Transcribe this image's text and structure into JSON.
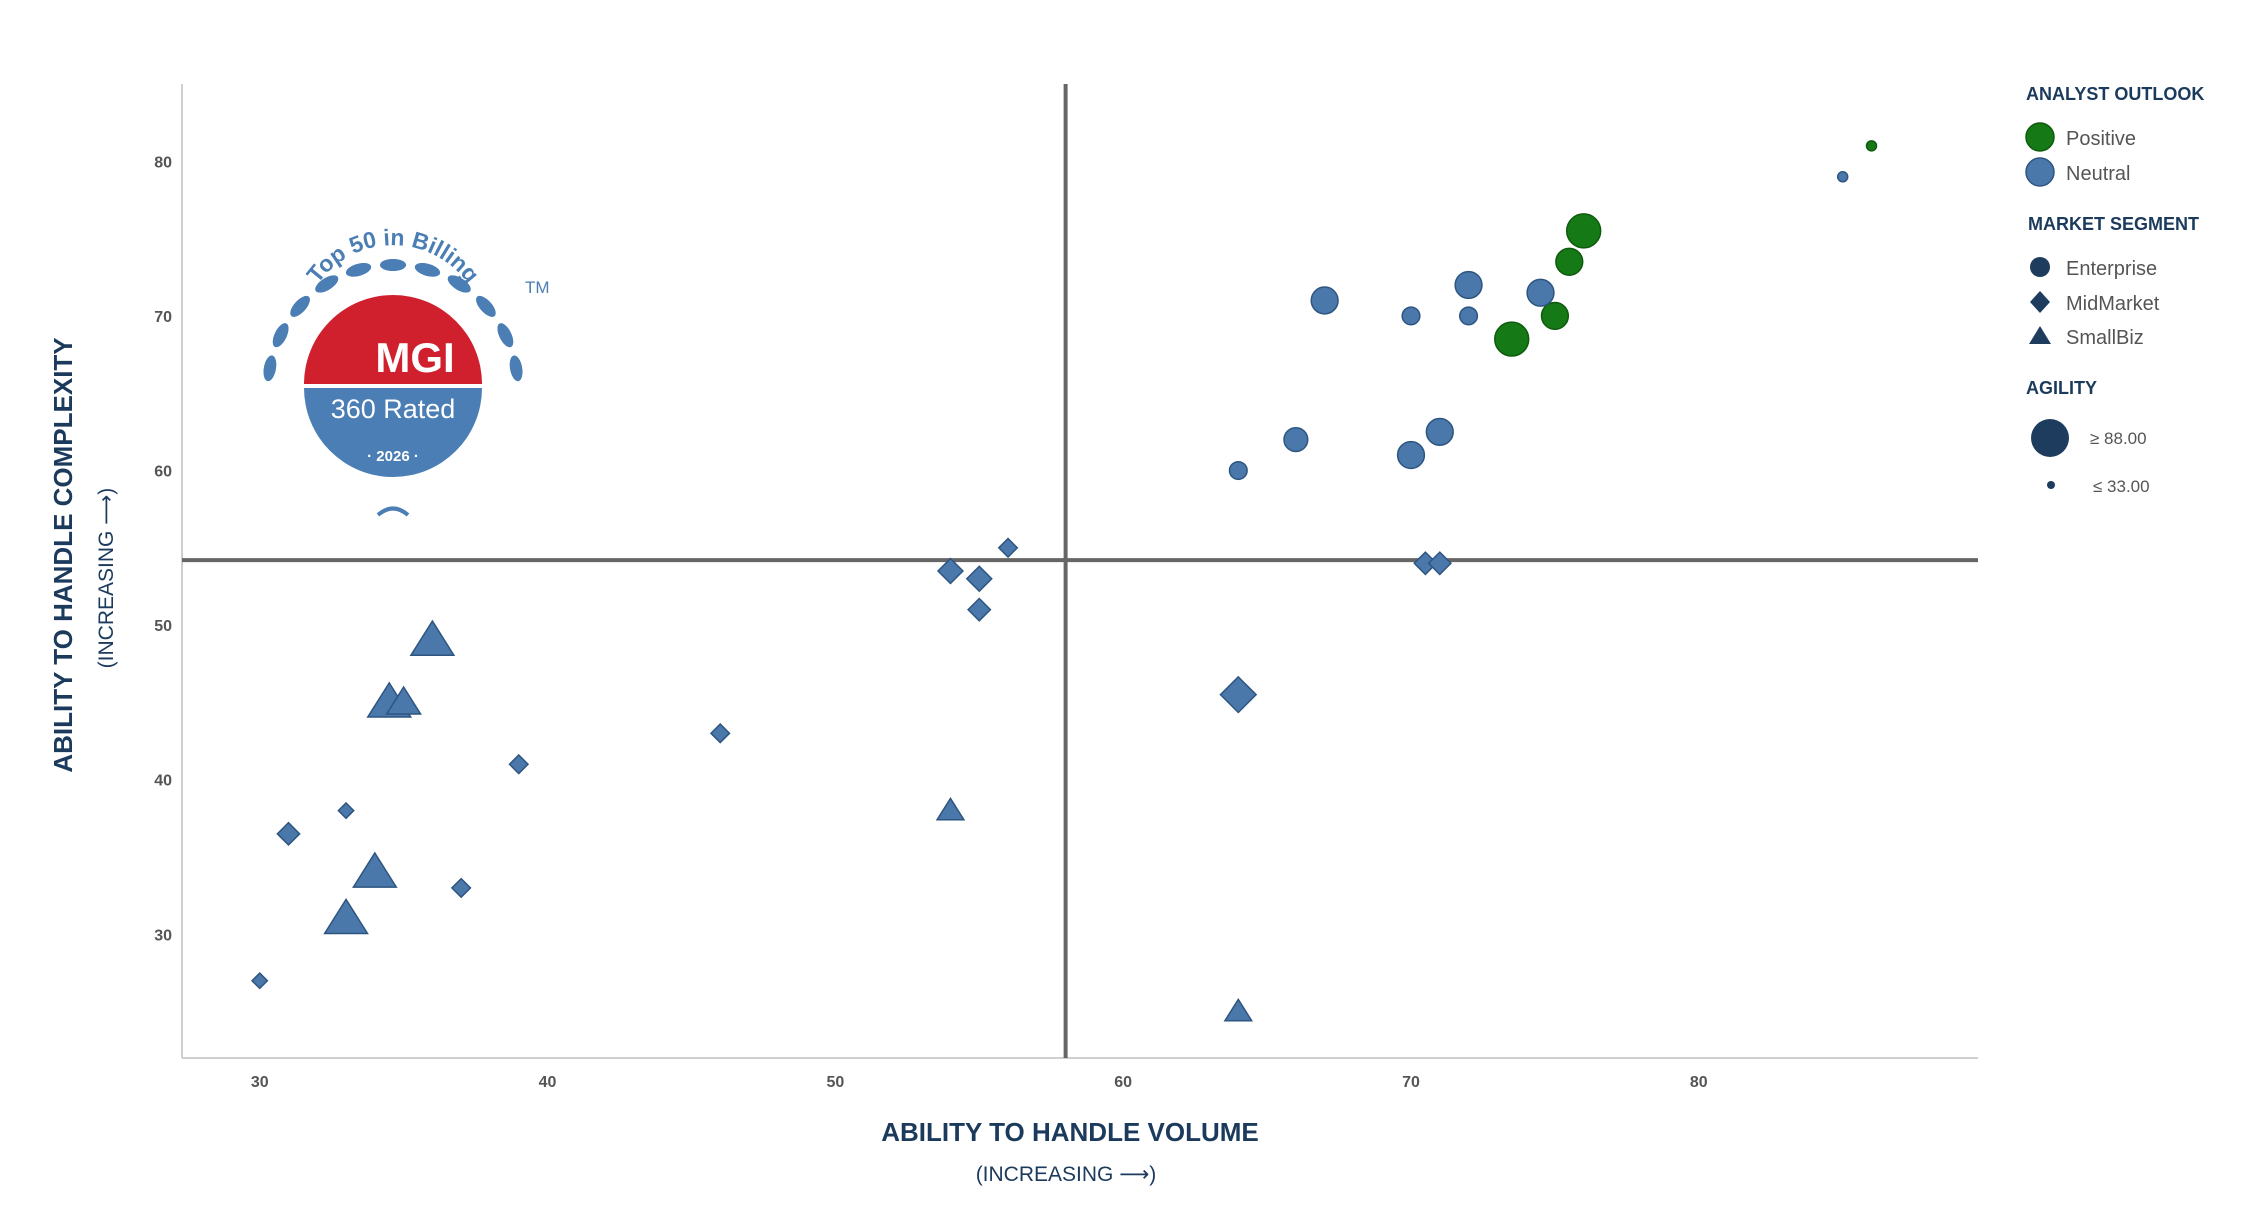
{
  "chart_data": {
    "type": "scatter",
    "xlabel": "ABILITY TO HANDLE VOLUME",
    "xlabel_sub": "(INCREASING ⟶)",
    "ylabel": "ABILITY TO HANDLE COMPLEXITY",
    "ylabel_sub": "(INCREASING ⟶)",
    "xlim": [
      27.3,
      89.7
    ],
    "ylim": [
      22,
      85
    ],
    "xticks": [
      30,
      40,
      50,
      60,
      70,
      80
    ],
    "yticks": [
      30,
      40,
      50,
      60,
      70,
      80
    ],
    "quadrant_lines": {
      "x": 58,
      "y": 54.2
    },
    "grid": false,
    "colors": {
      "Positive": "#157a15",
      "Neutral": "#4a78aa",
      "stroke": "#2e5580",
      "axis": "#666666",
      "title": "#1b3a5c"
    },
    "legend_position": "right",
    "legend": {
      "outlook_title": "ANALYST OUTLOOK",
      "outlook_items": [
        "Positive",
        "Neutral"
      ],
      "segment_title": "MARKET SEGMENT",
      "segment_items": [
        "Enterprise",
        "MidMarket",
        "SmallBiz"
      ],
      "agility_title": "AGILITY",
      "agility_max": "≥ 88.00",
      "agility_min": "≤ 33.00"
    },
    "points": [
      {
        "x": 86,
        "y": 81,
        "segment": "Enterprise",
        "outlook": "Positive",
        "agility": 33
      },
      {
        "x": 85,
        "y": 79,
        "segment": "Enterprise",
        "outlook": "Neutral",
        "agility": 33
      },
      {
        "x": 76,
        "y": 75.5,
        "segment": "Enterprise",
        "outlook": "Positive",
        "agility": 80
      },
      {
        "x": 75.5,
        "y": 73.5,
        "segment": "Enterprise",
        "outlook": "Positive",
        "agility": 66
      },
      {
        "x": 75,
        "y": 70,
        "segment": "Enterprise",
        "outlook": "Positive",
        "agility": 66
      },
      {
        "x": 73.5,
        "y": 68.5,
        "segment": "Enterprise",
        "outlook": "Positive",
        "agility": 80
      },
      {
        "x": 74.5,
        "y": 71.5,
        "segment": "Enterprise",
        "outlook": "Neutral",
        "agility": 66
      },
      {
        "x": 72,
        "y": 72,
        "segment": "Enterprise",
        "outlook": "Neutral",
        "agility": 66
      },
      {
        "x": 72,
        "y": 70,
        "segment": "Enterprise",
        "outlook": "Neutral",
        "agility": 48
      },
      {
        "x": 70,
        "y": 70,
        "segment": "Enterprise",
        "outlook": "Neutral",
        "agility": 48
      },
      {
        "x": 67,
        "y": 71,
        "segment": "Enterprise",
        "outlook": "Neutral",
        "agility": 66
      },
      {
        "x": 66,
        "y": 62,
        "segment": "Enterprise",
        "outlook": "Neutral",
        "agility": 60
      },
      {
        "x": 71,
        "y": 62.5,
        "segment": "Enterprise",
        "outlook": "Neutral",
        "agility": 66
      },
      {
        "x": 70,
        "y": 61,
        "segment": "Enterprise",
        "outlook": "Neutral",
        "agility": 66
      },
      {
        "x": 64,
        "y": 60,
        "segment": "Enterprise",
        "outlook": "Neutral",
        "agility": 48
      },
      {
        "x": 56,
        "y": 55,
        "segment": "MidMarket",
        "outlook": "Neutral",
        "agility": 48
      },
      {
        "x": 54,
        "y": 53.5,
        "segment": "MidMarket",
        "outlook": "Neutral",
        "agility": 60
      },
      {
        "x": 55,
        "y": 53,
        "segment": "MidMarket",
        "outlook": "Neutral",
        "agility": 60
      },
      {
        "x": 55,
        "y": 51,
        "segment": "MidMarket",
        "outlook": "Neutral",
        "agility": 55
      },
      {
        "x": 70.5,
        "y": 54,
        "segment": "MidMarket",
        "outlook": "Neutral",
        "agility": 55
      },
      {
        "x": 71,
        "y": 54,
        "segment": "MidMarket",
        "outlook": "Neutral",
        "agility": 55
      },
      {
        "x": 64,
        "y": 45.5,
        "segment": "MidMarket",
        "outlook": "Neutral",
        "agility": 80
      },
      {
        "x": 46,
        "y": 43,
        "segment": "MidMarket",
        "outlook": "Neutral",
        "agility": 48
      },
      {
        "x": 39,
        "y": 41,
        "segment": "MidMarket",
        "outlook": "Neutral",
        "agility": 48
      },
      {
        "x": 33,
        "y": 38,
        "segment": "MidMarket",
        "outlook": "Neutral",
        "agility": 42
      },
      {
        "x": 31,
        "y": 36.5,
        "segment": "MidMarket",
        "outlook": "Neutral",
        "agility": 55
      },
      {
        "x": 37,
        "y": 33,
        "segment": "MidMarket",
        "outlook": "Neutral",
        "agility": 48
      },
      {
        "x": 30,
        "y": 27,
        "segment": "MidMarket",
        "outlook": "Neutral",
        "agility": 42
      },
      {
        "x": 36,
        "y": 49,
        "segment": "SmallBiz",
        "outlook": "Neutral",
        "agility": 80
      },
      {
        "x": 34.5,
        "y": 45,
        "segment": "SmallBiz",
        "outlook": "Neutral",
        "agility": 80
      },
      {
        "x": 35,
        "y": 45,
        "segment": "SmallBiz",
        "outlook": "Neutral",
        "agility": 66
      },
      {
        "x": 34,
        "y": 34,
        "segment": "SmallBiz",
        "outlook": "Neutral",
        "agility": 80
      },
      {
        "x": 33,
        "y": 31,
        "segment": "SmallBiz",
        "outlook": "Neutral",
        "agility": 80
      },
      {
        "x": 54,
        "y": 38,
        "segment": "SmallBiz",
        "outlook": "Neutral",
        "agility": 55
      },
      {
        "x": 64,
        "y": 25,
        "segment": "SmallBiz",
        "outlook": "Neutral",
        "agility": 55
      }
    ]
  },
  "badge": {
    "arc_text": "Top 50 in Billing",
    "tm": "TM",
    "brand": "MGI",
    "rating": "360 Rated",
    "year": "· 2026 ·",
    "colors": {
      "red": "#d0202e",
      "blue": "#4a7eb4"
    }
  }
}
